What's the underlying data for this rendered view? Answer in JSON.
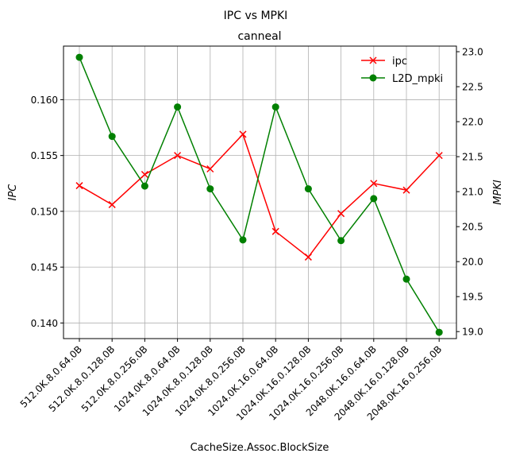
{
  "chart_data": {
    "type": "line",
    "suptitle": "IPC vs MPKI",
    "title": "canneal",
    "xlabel": "CacheSize.Assoc.BlockSize",
    "ylabel_left": "IPC",
    "ylabel_right": "MPKI",
    "categories": [
      "512.0K.8.0.64.0B",
      "512.0K.8.0.128.0B",
      "512.0K.8.0.256.0B",
      "1024.0K.8.0.64.0B",
      "1024.0K.8.0.128.0B",
      "1024.0K.8.0.256.0B",
      "1024.0K.16.0.64.0B",
      "1024.0K.16.0.128.0B",
      "1024.0K.16.0.256.0B",
      "2048.0K.16.0.64.0B",
      "2048.0K.16.0.128.0B",
      "2048.0K.16.0.256.0B"
    ],
    "left_ticks": [
      "0.140",
      "0.145",
      "0.150",
      "0.155",
      "0.160"
    ],
    "right_ticks": [
      "19.0",
      "19.5",
      "20.0",
      "20.5",
      "21.0",
      "21.5",
      "22.0",
      "22.5",
      "23.0"
    ],
    "left_ylim": [
      0.1386,
      0.1648
    ],
    "right_ylim": [
      18.9,
      23.08
    ],
    "grid": true,
    "legend_position": "top-right",
    "series": [
      {
        "name": "ipc",
        "axis": "left",
        "color": "#ff0000",
        "marker": "x",
        "values": [
          0.1523,
          0.1506,
          0.1533,
          0.155,
          0.1538,
          0.1569,
          0.1482,
          0.1459,
          0.1498,
          0.1525,
          0.1519,
          0.155
        ]
      },
      {
        "name": "L2D_mpki",
        "axis": "right",
        "color": "#008000",
        "marker": "o",
        "values": [
          22.92,
          21.79,
          21.08,
          22.21,
          21.04,
          20.31,
          22.21,
          21.04,
          20.3,
          20.9,
          19.75,
          18.99
        ]
      }
    ]
  }
}
